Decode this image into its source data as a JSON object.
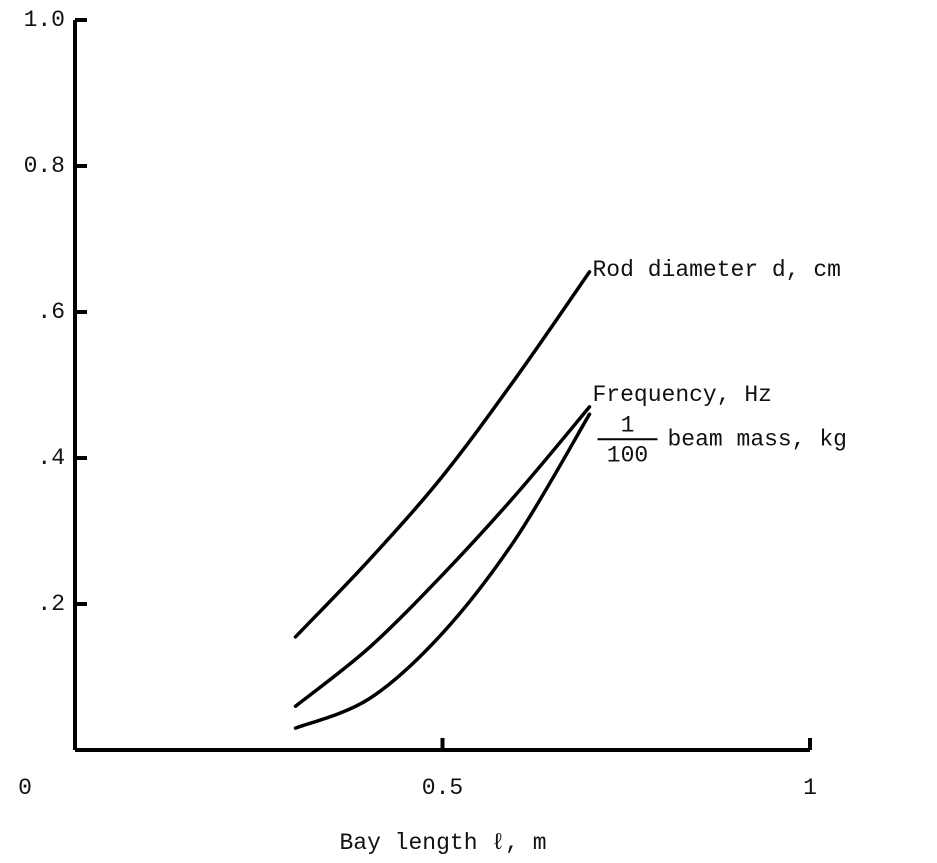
{
  "chart_data": {
    "type": "line",
    "x_label": "Bay length ℓ, m",
    "xlim": [
      0,
      1
    ],
    "ylim": [
      0,
      1
    ],
    "xticks": [
      0,
      0.5,
      1
    ],
    "yticks": [
      {
        "value": 0.2,
        "label": ".2"
      },
      {
        "value": 0.4,
        "label": ".4"
      },
      {
        "value": 0.6,
        "label": ".6"
      },
      {
        "value": 0.8,
        "label": "0.8"
      },
      {
        "value": 1.0,
        "label": "1.0"
      }
    ],
    "grid": false,
    "x": [
      0.3,
      0.4,
      0.5,
      0.6,
      0.7
    ],
    "series": [
      {
        "name": "Rod diameter d, cm",
        "color": "#000000",
        "values": [
          0.155,
          0.26,
          0.375,
          0.51,
          0.655
        ]
      },
      {
        "name": "Frequency, Hz",
        "color": "#000000",
        "values": [
          0.06,
          0.14,
          0.24,
          0.35,
          0.47
        ]
      },
      {
        "name": "beam mass, kg",
        "name_factor": {
          "numerator": "1",
          "denominator": "100"
        },
        "color": "#000000",
        "values": [
          0.03,
          0.07,
          0.16,
          0.29,
          0.46
        ]
      }
    ]
  }
}
